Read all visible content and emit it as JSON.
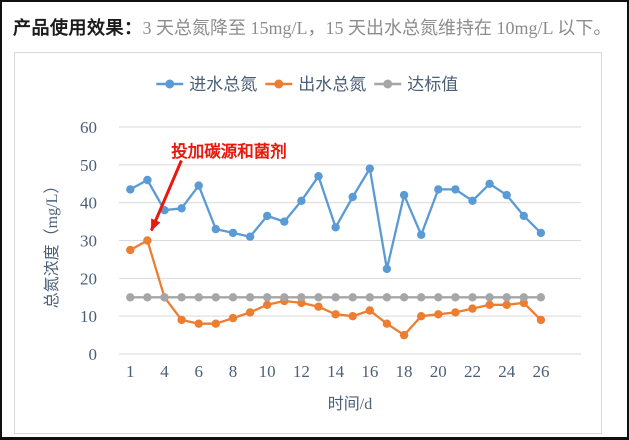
{
  "header": {
    "label": "产品使用效果：",
    "text": "3 天总氮降至 15mg/L，15 天出水总氮维持在 10mg/L 以下。"
  },
  "chart_data": {
    "type": "line",
    "title": "",
    "xlabel": "时间/d",
    "ylabel": "总氮浓度（mg/L）",
    "ylim": [
      0,
      60
    ],
    "ytick_step": 10,
    "grid": true,
    "legend_position": "top",
    "x": [
      1,
      3,
      4,
      5,
      6,
      7,
      8,
      9,
      10,
      11,
      12,
      13,
      14,
      15,
      16,
      17,
      18,
      19,
      20,
      21,
      22,
      23,
      24,
      25,
      26
    ],
    "x_tick_labels": [
      "1",
      "4",
      "6",
      "8",
      "10",
      "12",
      "14",
      "16",
      "18",
      "20",
      "22",
      "24",
      "26"
    ],
    "series": [
      {
        "name": "进水总氮",
        "color": "#5B9BD5",
        "values": [
          43.5,
          46,
          38,
          38.5,
          44.5,
          33,
          32,
          31,
          36.5,
          35,
          40.5,
          47,
          33.5,
          41.5,
          49,
          22.5,
          42,
          31.5,
          43.5,
          43.5,
          40.5,
          45,
          42,
          36.5,
          32
        ]
      },
      {
        "name": "出水总氮",
        "color": "#ED7D31",
        "values": [
          27.5,
          30,
          15,
          9,
          8,
          8,
          9.5,
          11,
          13,
          14,
          13.5,
          12.5,
          10.5,
          10,
          11.5,
          8,
          5,
          10,
          10.5,
          11,
          12,
          13,
          13,
          13.5,
          9
        ]
      },
      {
        "name": "达标值",
        "color": "#A6A6A6",
        "values": [
          15,
          15,
          15,
          15,
          15,
          15,
          15,
          15,
          15,
          15,
          15,
          15,
          15,
          15,
          15,
          15,
          15,
          15,
          15,
          15,
          15,
          15,
          15,
          15,
          15
        ]
      }
    ],
    "annotation": {
      "text": "投加碳源和菌剂",
      "color": "#E8190D",
      "target_series": 1,
      "target_index": 1
    },
    "colors": {
      "grid": "#D9D9D9",
      "text": "#4A5F78"
    }
  }
}
